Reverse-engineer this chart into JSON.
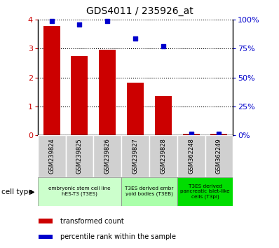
{
  "title": "GDS4011 / 235926_at",
  "samples": [
    "GSM239824",
    "GSM239825",
    "GSM239826",
    "GSM239827",
    "GSM239828",
    "GSM362248",
    "GSM362249"
  ],
  "transformed_count": [
    3.8,
    2.75,
    2.97,
    1.82,
    1.35,
    0.04,
    0.04
  ],
  "percentile_rank": [
    99,
    96,
    99,
    84,
    77,
    1,
    1
  ],
  "bar_color": "#cc0000",
  "dot_color": "#0000cc",
  "ylim_left": [
    0,
    4
  ],
  "ylim_right": [
    0,
    100
  ],
  "yticks_left": [
    0,
    1,
    2,
    3,
    4
  ],
  "yticks_right": [
    0,
    25,
    50,
    75,
    100
  ],
  "ytick_labels_right": [
    "0%",
    "25%",
    "50%",
    "75%",
    "100%"
  ],
  "cell_groups": [
    {
      "label": "embryonic stem cell line\nhES-T3 (T3ES)",
      "samples": [
        0,
        1,
        2
      ],
      "color": "#ccffcc"
    },
    {
      "label": "T3ES derived embr\nyoid bodies (T3EB)",
      "samples": [
        3,
        4
      ],
      "color": "#aaffaa"
    },
    {
      "label": "T3ES derived\npancreatic islet-like\ncells (T3pi)",
      "samples": [
        5,
        6
      ],
      "color": "#00dd00"
    }
  ],
  "legend_items": [
    {
      "label": "transformed count",
      "color": "#cc0000"
    },
    {
      "label": "percentile rank within the sample",
      "color": "#0000cc"
    }
  ],
  "cell_type_label": "cell type",
  "tick_label_color_left": "#cc0000",
  "tick_label_color_right": "#0000cc"
}
